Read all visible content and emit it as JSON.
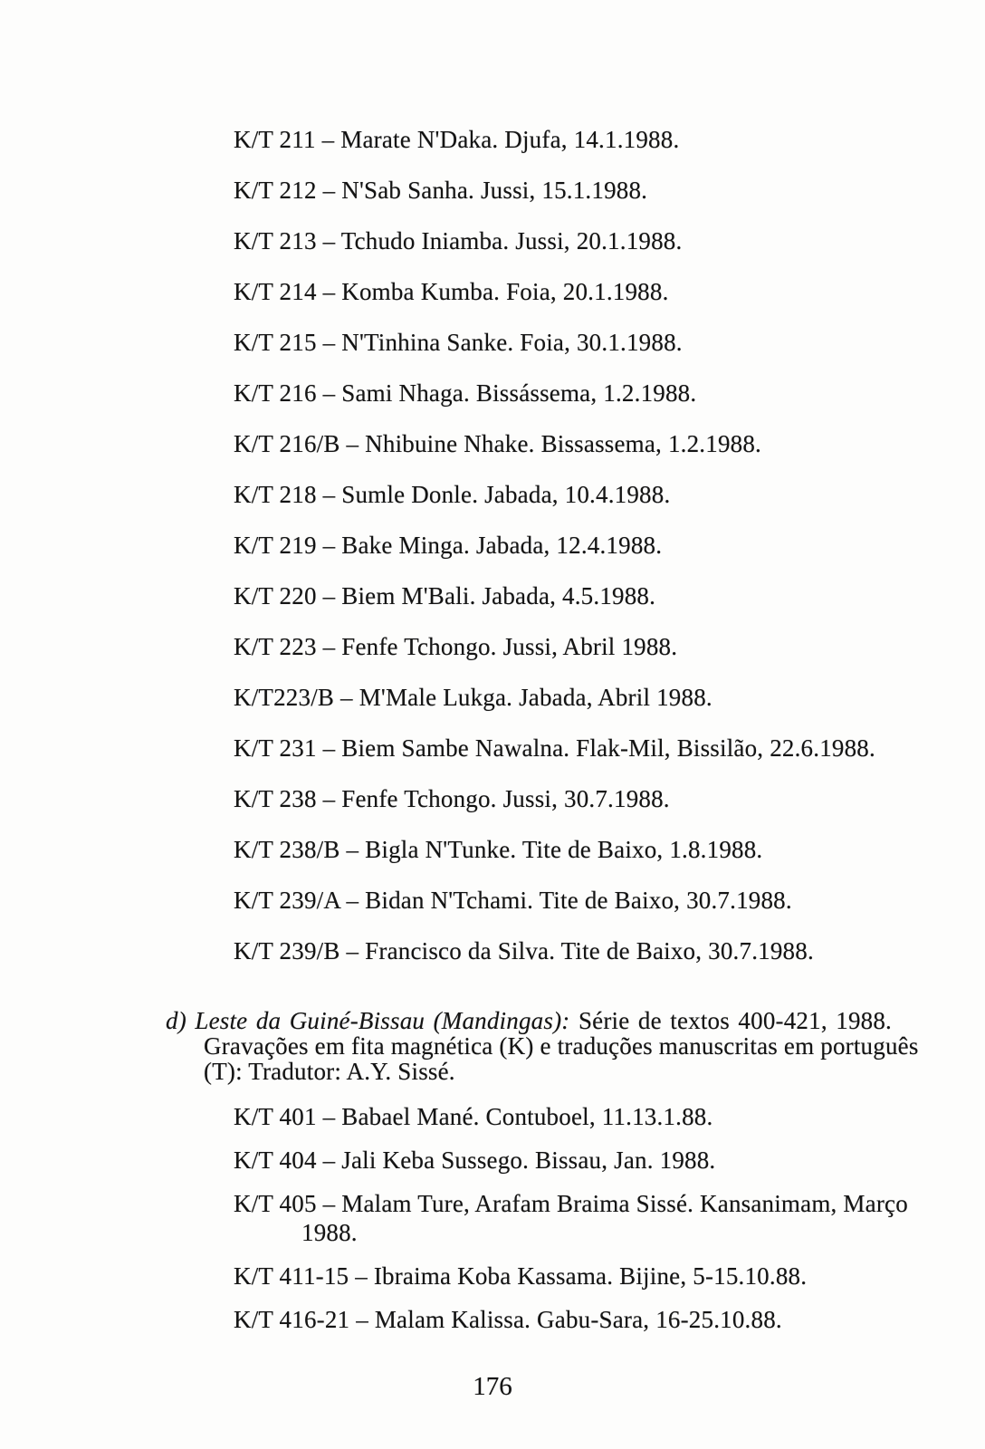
{
  "document": {
    "page_number": "176",
    "section_c": {
      "entries": [
        {
          "text": "K/T 211 – Marate N'Daka. Djufa, 14.1.1988."
        },
        {
          "text": "K/T 212 – N'Sab Sanha. Jussi, 15.1.1988."
        },
        {
          "text": "K/T 213 – Tchudo Iniamba. Jussi, 20.1.1988."
        },
        {
          "text": "K/T 214 – Komba Kumba. Foia, 20.1.1988."
        },
        {
          "text": "K/T 215 – N'Tinhina Sanke. Foia, 30.1.1988."
        },
        {
          "text": "K/T 216 – Sami Nhaga. Bissássema, 1.2.1988."
        },
        {
          "text": "K/T 216/B – Nhibuine Nhake. Bissassema, 1.2.1988."
        },
        {
          "text": "K/T 218 – Sumle Donle. Jabada, 10.4.1988."
        },
        {
          "text": "K/T 219 – Bake Minga. Jabada, 12.4.1988."
        },
        {
          "text": "K/T 220 – Biem M'Bali. Jabada, 4.5.1988."
        },
        {
          "text": "K/T 223 – Fenfe Tchongo. Jussi, Abril 1988."
        },
        {
          "text": "K/T223/B – M'Male Lukga. Jabada, Abril 1988."
        },
        {
          "text": "K/T 231 – Biem Sambe Nawalna. Flak-Mil, Bissilão, 22.6.1988."
        },
        {
          "text": "K/T 238 – Fenfe Tchongo. Jussi, 30.7.1988."
        },
        {
          "text": "K/T 238/B – Bigla N'Tunke. Tite de Baixo, 1.8.1988."
        },
        {
          "text": "K/T 239/A – Bidan N'Tchami. Tite de Baixo, 30.7.1988."
        },
        {
          "text": "K/T 239/B – Francisco da Silva. Tite de Baixo, 30.7.1988."
        }
      ]
    },
    "section_d": {
      "heading": {
        "line1_italic": "d) Leste da Guiné-Bissau (Mandingas):",
        "line1_roman": "Série de textos 400-421, 1988.",
        "line2": "Gravações em fita magnética (K) e traduções manuscritas em português",
        "line3": "(T): Tradutor: A.Y. Sissé."
      },
      "entries": [
        {
          "text": "K/T 401 – Babael Mané. Contuboel, 11.13.1.88."
        },
        {
          "text": "K/T 404 – Jali Keba Sussego. Bissau, Jan. 1988."
        },
        {
          "text": "K/T 405 – Malam Ture, Arafam Braima Sissé. Kansanimam, Março",
          "text_wrap": "1988."
        },
        {
          "text": "K/T 411-15 – Ibraima Koba Kassama. Bijine, 5-15.10.88."
        },
        {
          "text": "K/T 416-21 – Malam Kalissa. Gabu-Sara, 16-25.10.88."
        }
      ]
    }
  }
}
